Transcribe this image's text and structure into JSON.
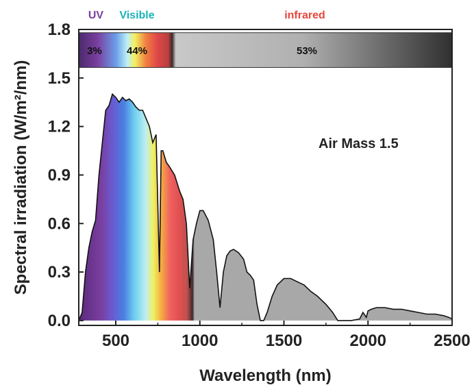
{
  "chart_data": {
    "type": "area",
    "xlabel": "Wavelength (nm)",
    "ylabel": "Spectral irradiation (W/m²/nm)",
    "xlim": [
      280,
      2500
    ],
    "ylim": [
      -0.03,
      1.8
    ],
    "x_ticks": [
      500,
      1000,
      1500,
      2000,
      2500
    ],
    "y_ticks": [
      0.0,
      0.3,
      0.6,
      0.9,
      1.2,
      1.5,
      1.8
    ],
    "x_tick_labels": [
      "500",
      "1000",
      "1500",
      "2000",
      "2500"
    ],
    "y_tick_labels": [
      "0.0",
      "0.3",
      "0.6",
      "0.9",
      "1.2",
      "1.5",
      "1.8"
    ],
    "grid": false,
    "annotation": "Air Mass 1.5",
    "bands": [
      {
        "name": "UV",
        "range": [
          280,
          400
        ],
        "share": "3%",
        "color": "#7a3fa0"
      },
      {
        "name": "Visible",
        "range": [
          400,
          780
        ],
        "share": "44%",
        "color": "#19b3b8"
      },
      {
        "name": "infrared",
        "range": [
          780,
          2500
        ],
        "share": "53%",
        "color": "#e8463c"
      }
    ],
    "series": [
      {
        "x": [
          280,
          300,
          320,
          340,
          360,
          380,
          400,
          420,
          440,
          460,
          480,
          500,
          520,
          540,
          560,
          580,
          600,
          620,
          640,
          660,
          680,
          700,
          720,
          740,
          760,
          770,
          780,
          800,
          820,
          850,
          880,
          900,
          920,
          940,
          960,
          980,
          1000,
          1020,
          1050,
          1080,
          1100,
          1120,
          1140,
          1160,
          1180,
          1200,
          1230,
          1260,
          1280,
          1300,
          1320,
          1340,
          1360,
          1380,
          1400,
          1430,
          1460,
          1500,
          1540,
          1580,
          1620,
          1660,
          1700,
          1750,
          1790,
          1820,
          1850,
          1900,
          1950,
          1970,
          1990,
          2000,
          2020,
          2050,
          2100,
          2150,
          2200,
          2250,
          2300,
          2350,
          2400,
          2450,
          2480,
          2500
        ],
        "values": [
          0.0,
          0.05,
          0.3,
          0.45,
          0.55,
          0.62,
          0.9,
          1.1,
          1.3,
          1.33,
          1.4,
          1.38,
          1.35,
          1.38,
          1.36,
          1.37,
          1.35,
          1.32,
          1.3,
          1.3,
          1.25,
          1.2,
          1.1,
          1.15,
          0.3,
          1.05,
          1.05,
          0.98,
          0.95,
          0.9,
          0.8,
          0.75,
          0.6,
          0.2,
          0.5,
          0.6,
          0.68,
          0.68,
          0.62,
          0.5,
          0.3,
          0.08,
          0.3,
          0.4,
          0.43,
          0.44,
          0.42,
          0.38,
          0.3,
          0.28,
          0.25,
          0.1,
          0.0,
          0.0,
          0.05,
          0.15,
          0.22,
          0.26,
          0.26,
          0.24,
          0.22,
          0.18,
          0.15,
          0.1,
          0.05,
          0.0,
          0.0,
          0.0,
          0.01,
          0.05,
          0.02,
          0.06,
          0.07,
          0.08,
          0.08,
          0.07,
          0.07,
          0.06,
          0.05,
          0.04,
          0.04,
          0.03,
          0.02,
          0.01
        ]
      }
    ]
  }
}
